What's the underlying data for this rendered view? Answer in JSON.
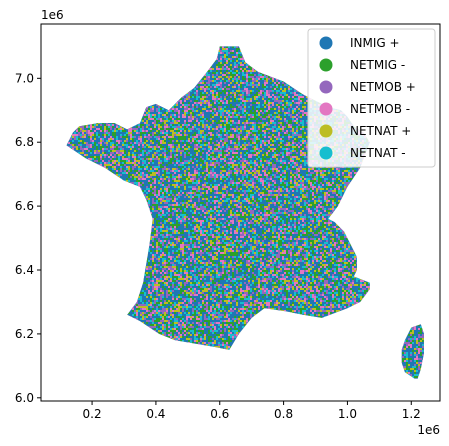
{
  "chart_data": {
    "type": "choropleth-map",
    "title": "",
    "xlabel": "",
    "ylabel": "",
    "x_offset_label": "1e6",
    "y_offset_label": "1e6",
    "xlim": [
      0.04,
      1.29
    ],
    "ylim": [
      5.99,
      7.17
    ],
    "x_ticks": [
      {
        "value": 0.2,
        "label": "0.2"
      },
      {
        "value": 0.4,
        "label": "0.4"
      },
      {
        "value": 0.6,
        "label": "0.6"
      },
      {
        "value": 0.8,
        "label": "0.8"
      },
      {
        "value": 1.0,
        "label": "1.0"
      },
      {
        "value": 1.2,
        "label": "1.2"
      }
    ],
    "y_ticks": [
      {
        "value": 6.0,
        "label": "6.0"
      },
      {
        "value": 6.2,
        "label": "6.2"
      },
      {
        "value": 6.4,
        "label": "6.4"
      },
      {
        "value": 6.6,
        "label": "6.6"
      },
      {
        "value": 6.8,
        "label": "6.8"
      },
      {
        "value": 7.0,
        "label": "7.0"
      }
    ],
    "legend_position": "top-right",
    "legend": [
      {
        "label": "INMIG +",
        "color": "#1f77b4"
      },
      {
        "label": "NETMIG -",
        "color": "#2ca02c"
      },
      {
        "label": "NETMOB +",
        "color": "#9467bd"
      },
      {
        "label": "NETMOB -",
        "color": "#e377c2"
      },
      {
        "label": "NETNAT +",
        "color": "#bcbd22"
      },
      {
        "label": "NETNAT -",
        "color": "#17becf"
      }
    ],
    "mainland_outline": [
      [
        0.6,
        7.1
      ],
      [
        0.66,
        7.1
      ],
      [
        0.68,
        7.05
      ],
      [
        0.72,
        7.02
      ],
      [
        0.8,
        6.99
      ],
      [
        0.86,
        6.95
      ],
      [
        0.9,
        6.93
      ],
      [
        0.94,
        6.91
      ],
      [
        0.98,
        6.9
      ],
      [
        1.0,
        6.88
      ],
      [
        1.02,
        6.85
      ],
      [
        1.05,
        6.83
      ],
      [
        1.07,
        6.8
      ],
      [
        1.04,
        6.72
      ],
      [
        1.0,
        6.66
      ],
      [
        0.97,
        6.6
      ],
      [
        0.94,
        6.56
      ],
      [
        0.96,
        6.55
      ],
      [
        0.99,
        6.52
      ],
      [
        1.03,
        6.44
      ],
      [
        1.03,
        6.4
      ],
      [
        1.02,
        6.38
      ],
      [
        1.07,
        6.36
      ],
      [
        1.07,
        6.34
      ],
      [
        1.04,
        6.3
      ],
      [
        1.0,
        6.28
      ],
      [
        0.92,
        6.25
      ],
      [
        0.86,
        6.26
      ],
      [
        0.81,
        6.27
      ],
      [
        0.74,
        6.28
      ],
      [
        0.7,
        6.25
      ],
      [
        0.66,
        6.2
      ],
      [
        0.63,
        6.15
      ],
      [
        0.58,
        6.16
      ],
      [
        0.52,
        6.17
      ],
      [
        0.46,
        6.18
      ],
      [
        0.41,
        6.2
      ],
      [
        0.35,
        6.24
      ],
      [
        0.31,
        6.26
      ],
      [
        0.34,
        6.3
      ],
      [
        0.36,
        6.36
      ],
      [
        0.37,
        6.42
      ],
      [
        0.38,
        6.48
      ],
      [
        0.39,
        6.56
      ],
      [
        0.37,
        6.62
      ],
      [
        0.35,
        6.66
      ],
      [
        0.3,
        6.68
      ],
      [
        0.24,
        6.72
      ],
      [
        0.18,
        6.75
      ],
      [
        0.12,
        6.79
      ],
      [
        0.14,
        6.83
      ],
      [
        0.16,
        6.85
      ],
      [
        0.22,
        6.86
      ],
      [
        0.27,
        6.86
      ],
      [
        0.31,
        6.84
      ],
      [
        0.35,
        6.86
      ],
      [
        0.37,
        6.91
      ],
      [
        0.4,
        6.92
      ],
      [
        0.44,
        6.9
      ],
      [
        0.48,
        6.94
      ],
      [
        0.52,
        6.97
      ],
      [
        0.56,
        7.02
      ],
      [
        0.59,
        7.06
      ]
    ],
    "corsica_outline": [
      [
        1.2,
        6.22
      ],
      [
        1.23,
        6.23
      ],
      [
        1.24,
        6.2
      ],
      [
        1.24,
        6.14
      ],
      [
        1.23,
        6.09
      ],
      [
        1.22,
        6.06
      ],
      [
        1.21,
        6.06
      ],
      [
        1.18,
        6.08
      ],
      [
        1.17,
        6.11
      ],
      [
        1.17,
        6.15
      ],
      [
        1.18,
        6.18
      ]
    ]
  }
}
